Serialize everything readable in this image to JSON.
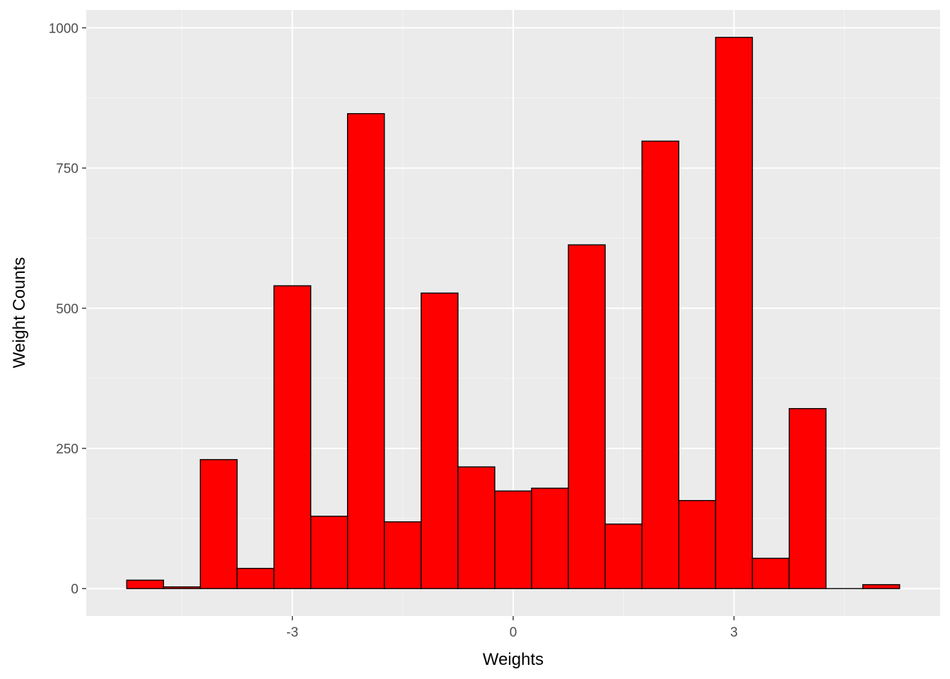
{
  "chart_data": {
    "type": "bar",
    "subtype": "histogram",
    "title": "",
    "xlabel": "Weights",
    "ylabel": "Weight Counts",
    "bin_width": 0.5,
    "bins": [
      {
        "x": -5.0,
        "count": 15
      },
      {
        "x": -4.5,
        "count": 3
      },
      {
        "x": -4.0,
        "count": 230
      },
      {
        "x": -3.5,
        "count": 36
      },
      {
        "x": -3.0,
        "count": 540
      },
      {
        "x": -2.5,
        "count": 129
      },
      {
        "x": -2.0,
        "count": 847
      },
      {
        "x": -1.5,
        "count": 119
      },
      {
        "x": -1.0,
        "count": 527
      },
      {
        "x": -0.5,
        "count": 217
      },
      {
        "x": 0.0,
        "count": 174
      },
      {
        "x": 0.5,
        "count": 179
      },
      {
        "x": 1.0,
        "count": 613
      },
      {
        "x": 1.5,
        "count": 115
      },
      {
        "x": 2.0,
        "count": 798
      },
      {
        "x": 2.5,
        "count": 157
      },
      {
        "x": 3.0,
        "count": 983
      },
      {
        "x": 3.5,
        "count": 54
      },
      {
        "x": 4.0,
        "count": 321
      },
      {
        "x": 4.5,
        "count": 0
      },
      {
        "x": 5.0,
        "count": 7
      }
    ],
    "xlim": [
      -5.8,
      5.8
    ],
    "ylim": [
      -49,
      1032
    ],
    "x_ticks": [
      -3,
      0,
      3
    ],
    "x_tick_labels": [
      "-3",
      "0",
      "3"
    ],
    "y_ticks": [
      0,
      250,
      500,
      750,
      1000
    ],
    "y_tick_labels": [
      "0",
      "250",
      "500",
      "750",
      "1000"
    ],
    "grid": true,
    "legend": "none",
    "colors": {
      "bar_fill": "#ff0000",
      "bar_outline": "#000000",
      "panel_background": "#ebebeb",
      "grid_major": "#ffffff",
      "grid_minor": "#f5f5f5",
      "tick_text": "#4d4d4d"
    }
  }
}
